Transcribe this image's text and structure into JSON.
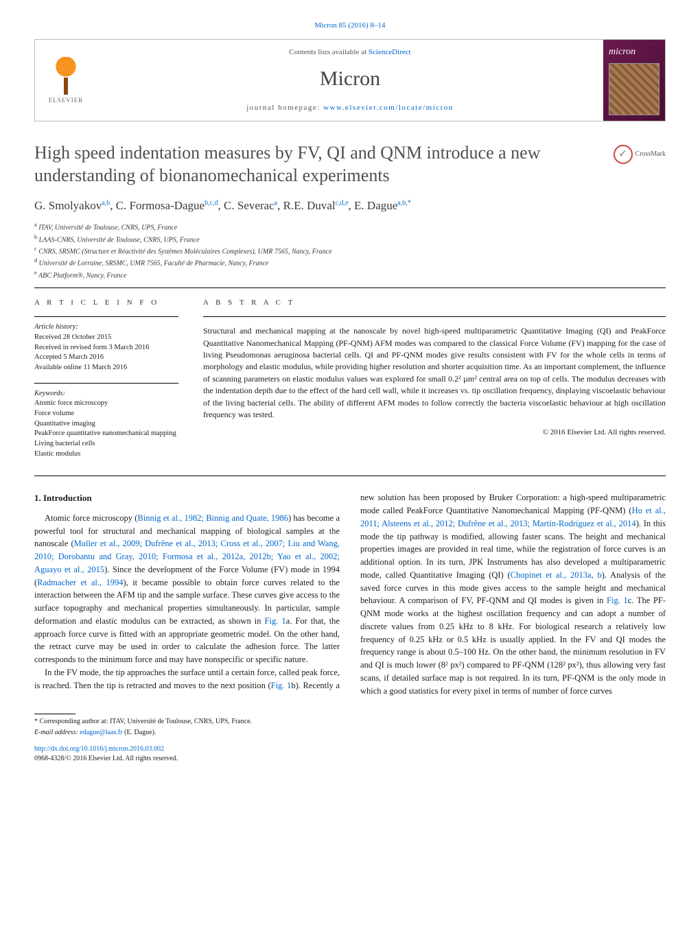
{
  "citation": "Micron 85 (2016) 8–14",
  "masthead": {
    "contents_prefix": "Contents lists available at ",
    "contents_link": "ScienceDirect",
    "journal": "Micron",
    "homepage_prefix": "journal homepage: ",
    "homepage_url": "www.elsevier.com/locate/micron",
    "publisher_label": "ELSEVIER",
    "cover_label": "micron",
    "accent_color": "#f7931e",
    "cover_bg": "#6a1b4d"
  },
  "crossmark_label": "CrossMark",
  "title": "High speed indentation measures by FV, QI and QNM introduce a new understanding of bionanomechanical experiments",
  "authors_html": "G. Smolyakov<sup>a,b</sup>, C. Formosa-Dague<sup>b,c,d</sup>, C. Severac<sup>a</sup>, R.E. Duval<sup>c,d,e</sup>, E. Dague<sup>a,b,*</sup>",
  "affiliations": [
    {
      "key": "a",
      "text": "ITAV, Université de Toulouse, CNRS, UPS, France"
    },
    {
      "key": "b",
      "text": "LAAS-CNRS, Université de Toulouse, CNRS, UPS, France"
    },
    {
      "key": "c",
      "text": "CNRS, SRSMC (Structure et Réactivité des Systèmes Moléculaires Complexes), UMR 7565, Nancy, France"
    },
    {
      "key": "d",
      "text": "Université de Lorraine, SRSMC, UMR 7565, Faculté de Pharmacie, Nancy, France"
    },
    {
      "key": "e",
      "text": "ABC Platform®, Nancy, France"
    }
  ],
  "article_info": {
    "heading": "A R T I C L E   I N F O",
    "history_label": "Article history:",
    "history": [
      "Received 28 October 2015",
      "Received in revised form 3 March 2016",
      "Accepted 5 March 2016",
      "Available online 11 March 2016"
    ],
    "keywords_label": "Keywords:",
    "keywords": [
      "Atomic force microscopy",
      "Force volume",
      "Quantitative imaging",
      "PeakForce quantitative nanomechanical mapping",
      "Living bacterial cells",
      "Elastic modulus"
    ]
  },
  "abstract": {
    "heading": "A B S T R A C T",
    "text": "Structural and mechanical mapping at the nanoscale by novel high-speed multiparametric Quantitative Imaging (QI) and PeakForce Quantitative Nanomechanical Mapping (PF-QNM) AFM modes was compared to the classical Force Volume (FV) mapping for the case of living Pseudomonas aeruginosa bacterial cells. QI and PF-QNM modes give results consistent with FV for the whole cells in terms of morphology and elastic modulus, while providing higher resolution and shorter acquisition time. As an important complement, the influence of scanning parameters on elastic modulus values was explored for small 0.2² µm² central area on top of cells. The modulus decreases with the indentation depth due to the effect of the hard cell wall, while it increases vs. tip oscillation frequency, displaying viscoelastic behaviour of the living bacterial cells. The ability of different AFM modes to follow correctly the bacteria viscoelastic behaviour at high oscillation frequency was tested.",
    "copyright": "© 2016 Elsevier Ltd. All rights reserved."
  },
  "section1": {
    "heading": "1.  Introduction",
    "p1_a": "Atomic force microscopy (",
    "p1_ref1": "Binnig et al., 1982; Binnig and Quate, 1986",
    "p1_b": ") has become a powerful tool for structural and mechanical mapping of biological samples at the nanoscale (",
    "p1_ref2": "Muller et al., 2009; Dufrêne et al., 2013; Cross et al., 2007; Liu and Wang, 2010; Dorobantu and Gray, 2010; Formosa et al., 2012a, 2012b; Yao et al., 2002; Aguayo et al., 2015",
    "p1_c": "). Since the development of the Force Volume (FV) mode in 1994 (",
    "p1_ref3": "Radmacher et al., 1994",
    "p1_d": "), it became possible to obtain force curves related to the interaction between the AFM tip and the sample surface. These curves give access to the surface topography and mechanical properties simultaneously. In particular, sample deformation and elastic modulus can be extracted, as shown in ",
    "p1_ref4": "Fig. 1",
    "p1_e": "a. For that, the approach force curve is fitted with an appropriate geometric model. On the other hand, the retract curve may be used in order to calculate the adhesion force. The latter corresponds to the minimum force and may have nonspecific or specific nature.",
    "p2_a": "In the FV mode, the tip approaches the surface until a certain force, called peak force, is reached. Then the tip is retracted and moves to the next position (",
    "p2_ref1": "Fig. 1",
    "p2_b": "b). Recently a new solution has been proposed by Bruker Corporation: a high-speed multiparametric mode called PeakForce Quantitative Nanomechanical Mapping (PF-QNM) (",
    "p2_ref2": "Hu et al., 2011; Alsteens et al., 2012; Dufrêne et al., 2013; Martín-Rodríguez et al., 2014",
    "p2_c": "). In this mode the tip pathway is modified, allowing faster scans. The height and mechanical properties images are provided in real time, while the registration of force curves is an additional option. In its turn, JPK Instruments has also developed a multiparametric mode, called Quantitative Imaging (QI) (",
    "p2_ref3": "Chopinet et al., 2013a, b",
    "p2_d": "). Analysis of the saved force curves in this mode gives access to the sample height and mechanical behaviour. A comparison of FV, PF-QNM and QI modes is given in ",
    "p2_ref4": "Fig. 1",
    "p2_e": "c. The PF-QNM mode works at the highest oscillation frequency and can adopt a number of discrete values from 0.25 kHz to 8 kHz. For biological research a relatively low frequency of 0.25 kHz or 0.5 kHz is usually applied. In the FV and QI modes the frequency range is about 0.5–100 Hz. On the other hand, the minimum resolution in FV and QI is much lower (8² px²) compared to PF-QNM (128² px²), thus allowing very fast scans, if detailed surface map is not required. In its turn, PF-QNM is the only mode in which a good statistics for every pixel in terms of number of force curves"
  },
  "footer": {
    "corr": "* Corresponding author at: ITAV, Université de Toulouse, CNRS, UPS, France.",
    "email_label": "E-mail address: ",
    "email": "edague@laas.fr",
    "email_suffix": " (E. Dague).",
    "doi": "http://dx.doi.org/10.1016/j.micron.2016.03.002",
    "issn": "0968-4328/© 2016 Elsevier Ltd. All rights reserved."
  }
}
